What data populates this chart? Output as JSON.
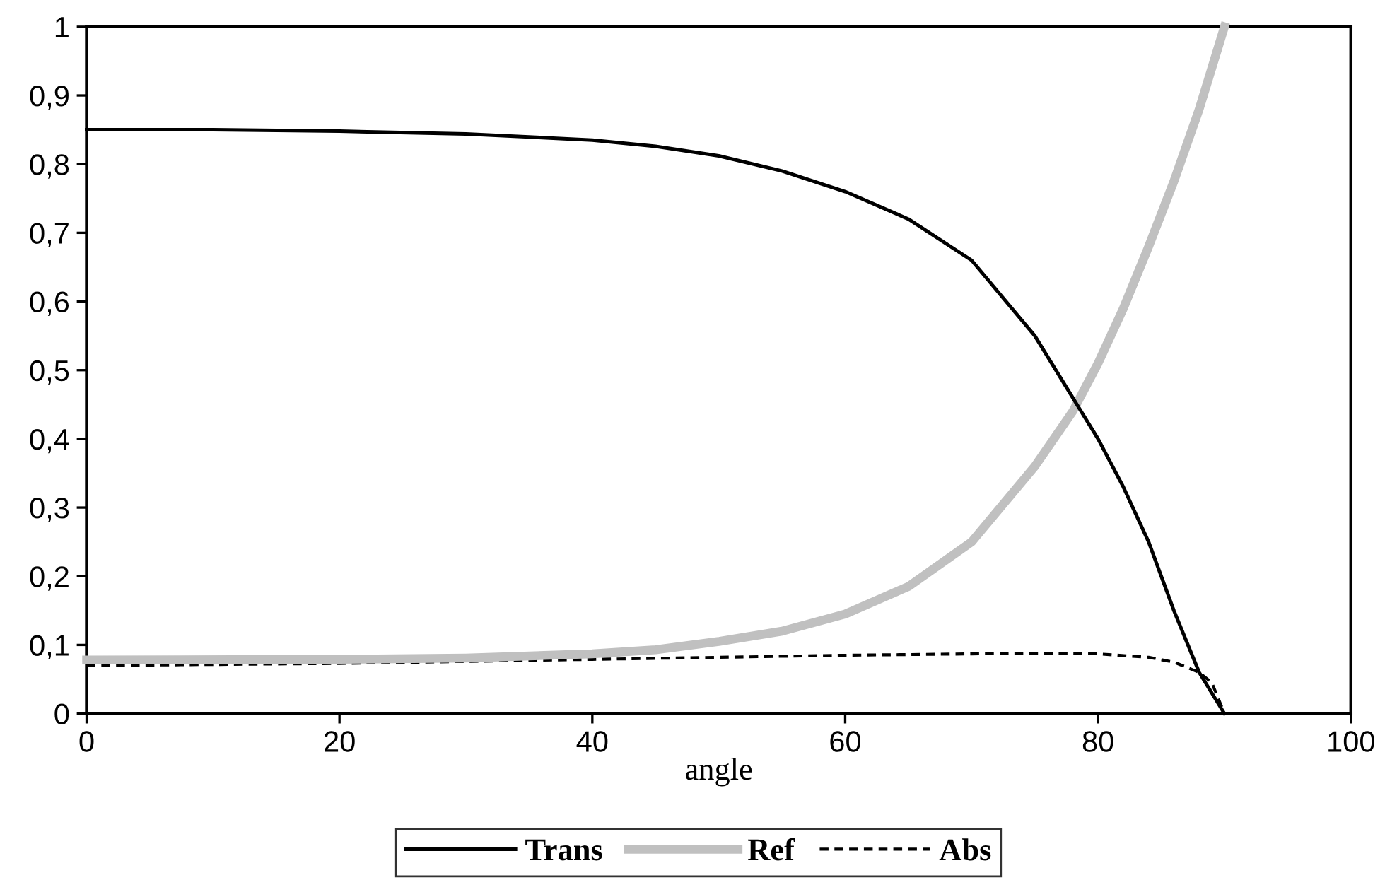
{
  "chart_data": {
    "type": "line",
    "xlabel": "angle",
    "xlim": [
      0,
      100
    ],
    "xticks": [
      0,
      20,
      40,
      60,
      80,
      100
    ],
    "ylim": [
      0,
      1
    ],
    "yticks": [
      0,
      {
        "value": 0.1,
        "label": "0,1"
      },
      {
        "value": 0.2,
        "label": "0,2"
      },
      {
        "value": 0.3,
        "label": "0,3"
      },
      {
        "value": 0.4,
        "label": "0,4"
      },
      {
        "value": 0.5,
        "label": "0,5"
      },
      {
        "value": 0.6,
        "label": "0,6"
      },
      {
        "value": 0.7,
        "label": "0,7"
      },
      {
        "value": 0.8,
        "label": "0,8"
      },
      {
        "value": 0.9,
        "label": "0,9"
      },
      1
    ],
    "grid": false,
    "legend": "bottom",
    "marker": "none",
    "series": [
      {
        "name": "Trans",
        "color": "#000000",
        "line_style": "solid",
        "x": [
          0,
          10,
          20,
          30,
          40,
          45,
          50,
          55,
          60,
          65,
          70,
          75,
          78,
          80,
          82,
          84,
          86,
          88,
          89,
          90
        ],
        "values": [
          0.85,
          0.85,
          0.848,
          0.844,
          0.835,
          0.826,
          0.812,
          0.79,
          0.76,
          0.72,
          0.66,
          0.55,
          0.46,
          0.4,
          0.33,
          0.25,
          0.15,
          0.06,
          0.03,
          0
        ]
      },
      {
        "name": "Ref",
        "color": "#c0c0c0",
        "line_style": "solid",
        "x": [
          0,
          20,
          30,
          40,
          45,
          50,
          55,
          60,
          65,
          70,
          75,
          78,
          80,
          82,
          84,
          86,
          88,
          90
        ],
        "values": [
          0.078,
          0.079,
          0.081,
          0.087,
          0.093,
          0.105,
          0.12,
          0.145,
          0.185,
          0.25,
          0.36,
          0.44,
          0.51,
          0.59,
          0.68,
          0.775,
          0.88,
          1.0
        ]
      },
      {
        "name": "Abs",
        "color": "#000000",
        "line_style": "dashed",
        "x": [
          0,
          20,
          40,
          60,
          70,
          75,
          80,
          84,
          86,
          88,
          89,
          90
        ],
        "values": [
          0.07,
          0.073,
          0.079,
          0.085,
          0.087,
          0.088,
          0.087,
          0.082,
          0.075,
          0.06,
          0.045,
          0
        ]
      }
    ]
  }
}
